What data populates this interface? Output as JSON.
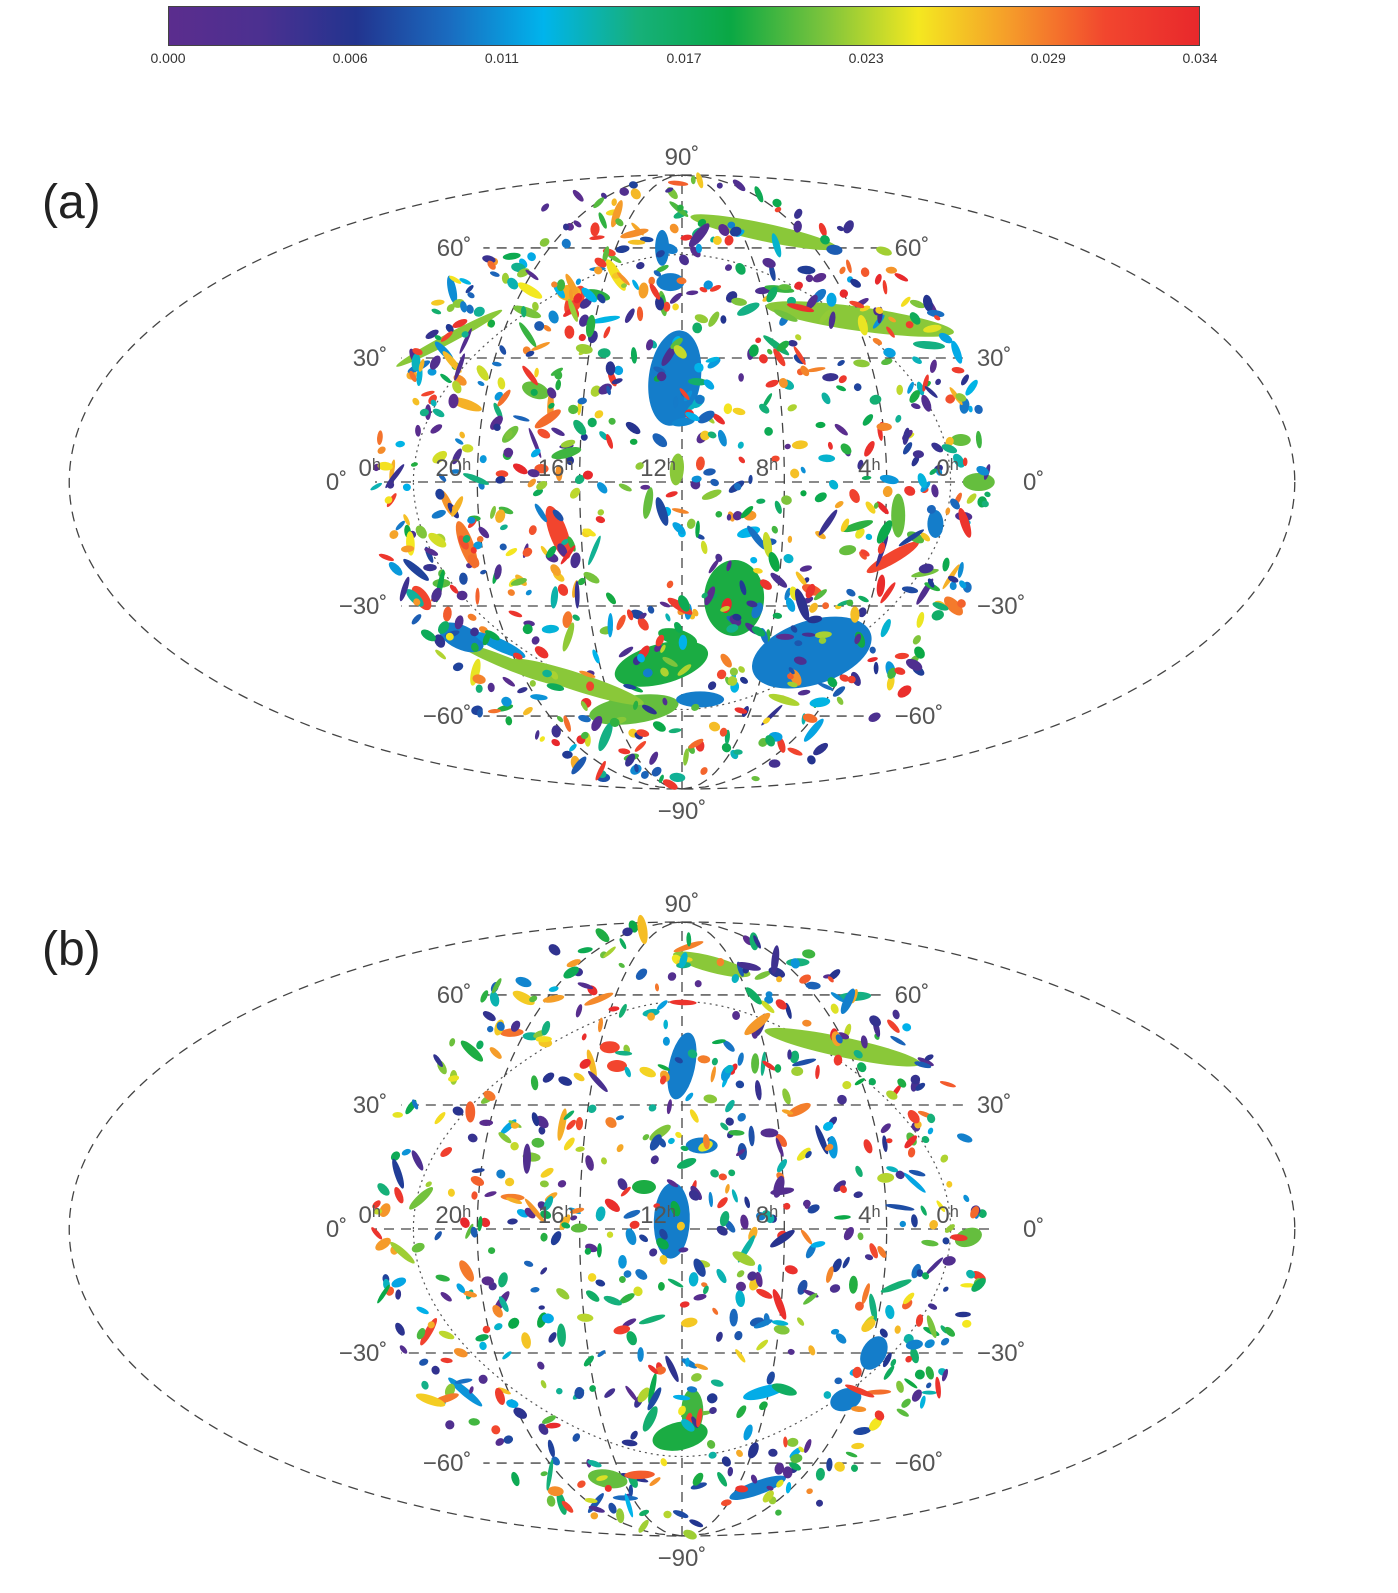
{
  "colorbar": {
    "ticks": [
      "0.000",
      "0.006",
      "0.011",
      "0.017",
      "0.023",
      "0.029",
      "0.034"
    ],
    "tick_values": [
      0.0,
      0.006,
      0.011,
      0.017,
      0.023,
      0.029,
      0.034
    ],
    "range": [
      0.0,
      0.034
    ],
    "colors": [
      "#5b2d8e",
      "#4b3090",
      "#22348f",
      "#1a6cc0",
      "#00b4ec",
      "#16b07a",
      "#0aa844",
      "#7cc43c",
      "#f4e820",
      "#f59a2a",
      "#f2462e",
      "#e8282c"
    ]
  },
  "projection": "mollweide",
  "grid_labels": {
    "dec": [
      "90˚",
      "60˚",
      "30˚",
      "0˚",
      "−30˚",
      "−60˚",
      "−90˚"
    ],
    "ra": [
      "0ʰ",
      "20ʰ",
      "16ʰ",
      "12ʰ",
      "8ʰ",
      "4ʰ",
      "0ʰ"
    ]
  },
  "panels": [
    {
      "label": "(a)",
      "features": [
        {
          "ra": 12.3,
          "dec": 25,
          "a": 48,
          "b": 26,
          "angle": -82,
          "v": 0.01
        },
        {
          "ra": 5.9,
          "dec": -42,
          "a": 62,
          "b": 32,
          "angle": -18,
          "v": 0.01
        },
        {
          "ra": 9.8,
          "dec": -28,
          "a": 38,
          "b": 30,
          "angle": -88,
          "v": 0.019
        },
        {
          "ra": 13.0,
          "dec": -45,
          "a": 48,
          "b": 20,
          "angle": -15,
          "v": 0.019
        },
        {
          "ra": 14.8,
          "dec": -58,
          "a": 45,
          "b": 14,
          "angle": -8,
          "v": 0.021
        },
        {
          "ra": 17.4,
          "dec": -50,
          "a": 70,
          "b": 9,
          "angle": 18,
          "v": 0.022
        },
        {
          "ra": 20.4,
          "dec": -45,
          "a": 55,
          "b": 6,
          "angle": 22,
          "v": 0.022
        },
        {
          "ra": 3.8,
          "dec": 40,
          "a": 95,
          "b": 12,
          "angle": 8,
          "v": 0.022
        },
        {
          "ra": 6.5,
          "dec": 65,
          "a": 75,
          "b": 9,
          "angle": 12,
          "v": 0.022
        },
        {
          "ra": 22.3,
          "dec": 35,
          "a": 60,
          "b": 5,
          "angle": -28,
          "v": 0.022
        },
        {
          "ra": 13.2,
          "dec": 60,
          "a": 7,
          "b": 18,
          "angle": 0,
          "v": 0.01
        },
        {
          "ra": 12.6,
          "dec": 50,
          "a": 14,
          "b": 9,
          "angle": 0,
          "v": 0.01
        },
        {
          "ra": 12.2,
          "dec": 3,
          "a": 16,
          "b": 7,
          "angle": 95,
          "v": 0.022
        },
        {
          "ra": 16.9,
          "dec": -12,
          "a": 28,
          "b": 9,
          "angle": 70,
          "v": 0.031
        },
        {
          "ra": 20.6,
          "dec": -15,
          "a": 25,
          "b": 7,
          "angle": 70,
          "v": 0.029
        },
        {
          "ra": 23.0,
          "dec": -28,
          "a": 14,
          "b": 7,
          "angle": 55,
          "v": 0.031
        },
        {
          "ra": 22.0,
          "dec": -38,
          "a": 24,
          "b": 12,
          "angle": 25,
          "v": 0.01
        },
        {
          "ra": 20.4,
          "dec": -40,
          "a": 28,
          "b": 6,
          "angle": 25,
          "v": 0.011
        },
        {
          "ra": 3.5,
          "dec": -8,
          "a": 22,
          "b": 7,
          "angle": 90,
          "v": 0.021
        },
        {
          "ra": 2.0,
          "dec": -10,
          "a": 14,
          "b": 8,
          "angle": 90,
          "v": 0.01
        },
        {
          "ra": 3.5,
          "dec": -18,
          "a": 30,
          "b": 6,
          "angle": -30,
          "v": 0.031
        },
        {
          "ra": 11.0,
          "dec": -55,
          "a": 24,
          "b": 8,
          "angle": 0,
          "v": 0.01
        },
        {
          "ra": 12.2,
          "dec": -38,
          "a": 20,
          "b": 8,
          "angle": 15,
          "v": 0.019
        },
        {
          "ra": 1.0,
          "dec": 10,
          "a": 10,
          "b": 6,
          "angle": 0,
          "v": 0.021
        },
        {
          "ra": 0.4,
          "dec": 0,
          "a": 16,
          "b": 9,
          "angle": 0,
          "v": 0.021
        },
        {
          "ra": 17.2,
          "dec": 45,
          "a": 16,
          "b": 8,
          "angle": -60,
          "v": 0.031
        },
        {
          "ra": 17.6,
          "dec": 47,
          "a": 12,
          "b": 8,
          "angle": 0,
          "v": 0.027
        },
        {
          "ra": 15.5,
          "dec": 52,
          "a": 18,
          "b": 5,
          "angle": 60,
          "v": 0.025
        },
        {
          "ra": 18.0,
          "dec": 22,
          "a": 14,
          "b": 8,
          "angle": 20,
          "v": 0.021
        },
        {
          "ra": 21.2,
          "dec": -5,
          "a": 14,
          "b": 4,
          "angle": 65,
          "v": 0.028
        },
        {
          "ra": 0.4,
          "dec": -30,
          "a": 12,
          "b": 6,
          "angle": 45,
          "v": 0.029
        }
      ]
    },
    {
      "label": "(b)",
      "features": [
        {
          "ra": 12.0,
          "dec": 40,
          "a": 34,
          "b": 13,
          "angle": -78,
          "v": 0.01
        },
        {
          "ra": 12.4,
          "dec": 2,
          "a": 38,
          "b": 18,
          "angle": -88,
          "v": 0.01
        },
        {
          "ra": 11.5,
          "dec": -45,
          "a": 22,
          "b": 11,
          "angle": 90,
          "v": 0.02
        },
        {
          "ra": 12.1,
          "dec": -52,
          "a": 28,
          "b": 14,
          "angle": -12,
          "v": 0.019
        },
        {
          "ra": 3.8,
          "dec": -30,
          "a": 18,
          "b": 12,
          "angle": -60,
          "v": 0.01
        },
        {
          "ra": 4.3,
          "dec": -42,
          "a": 16,
          "b": 11,
          "angle": -20,
          "v": 0.01
        },
        {
          "ra": 6.5,
          "dec": -68,
          "a": 30,
          "b": 7,
          "angle": -20,
          "v": 0.01
        },
        {
          "ra": 17.0,
          "dec": -65,
          "a": 20,
          "b": 9,
          "angle": 10,
          "v": 0.021
        },
        {
          "ra": 4.2,
          "dec": 45,
          "a": 80,
          "b": 10,
          "angle": 12,
          "v": 0.022
        },
        {
          "ra": 9.7,
          "dec": 70,
          "a": 40,
          "b": 8,
          "angle": 15,
          "v": 0.022
        },
        {
          "ra": 11.2,
          "dec": 20,
          "a": 16,
          "b": 8,
          "angle": 0,
          "v": 0.01
        },
        {
          "ra": 13.5,
          "dec": 10,
          "a": 12,
          "b": 7,
          "angle": 0,
          "v": 0.019
        },
        {
          "ra": 22.0,
          "dec": -40,
          "a": 22,
          "b": 4,
          "angle": 40,
          "v": 0.011
        },
        {
          "ra": 15.5,
          "dec": 45,
          "a": 10,
          "b": 6,
          "angle": 0,
          "v": 0.031
        },
        {
          "ra": 15.0,
          "dec": 40,
          "a": 10,
          "b": 6,
          "angle": 0,
          "v": 0.031
        },
        {
          "ra": 0.8,
          "dec": -2,
          "a": 14,
          "b": 9,
          "angle": -20,
          "v": 0.021
        },
        {
          "ra": 8.2,
          "dec": -40,
          "a": 22,
          "b": 6,
          "angle": -15,
          "v": 0.012
        },
        {
          "ra": 20.5,
          "dec": -10,
          "a": 12,
          "b": 5,
          "angle": 60,
          "v": 0.029
        }
      ]
    }
  ]
}
